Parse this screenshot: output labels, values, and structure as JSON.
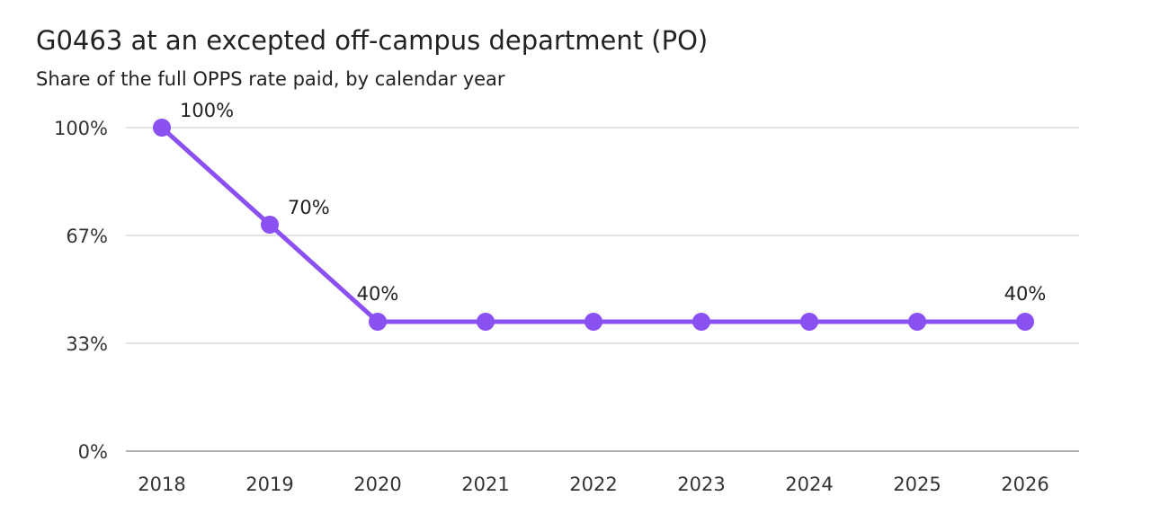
{
  "chart_data": {
    "type": "line",
    "title": "G0463 at an excepted off-campus department (PO)",
    "subtitle": "Share of the full OPPS rate paid, by calendar year",
    "xlabel": "",
    "ylabel": "",
    "categories": [
      "2018",
      "2019",
      "2020",
      "2021",
      "2022",
      "2023",
      "2024",
      "2025",
      "2026"
    ],
    "series": [
      {
        "values": [
          100,
          70,
          40,
          40,
          40,
          40,
          40,
          40,
          40
        ]
      }
    ],
    "data_labels": [
      "100%",
      "70%",
      "40%",
      "",
      "",
      "",
      "",
      "",
      "40%"
    ],
    "y_ticks": [
      0,
      33.33,
      66.67,
      100
    ],
    "y_tick_labels": [
      "0%",
      "33%",
      "67%",
      "100%"
    ],
    "ylim": [
      0,
      100
    ],
    "grid": true,
    "legend": "none",
    "colors": {
      "line": "#8b50f2",
      "grid": "#cfcfd8",
      "axis": "#999999"
    }
  }
}
